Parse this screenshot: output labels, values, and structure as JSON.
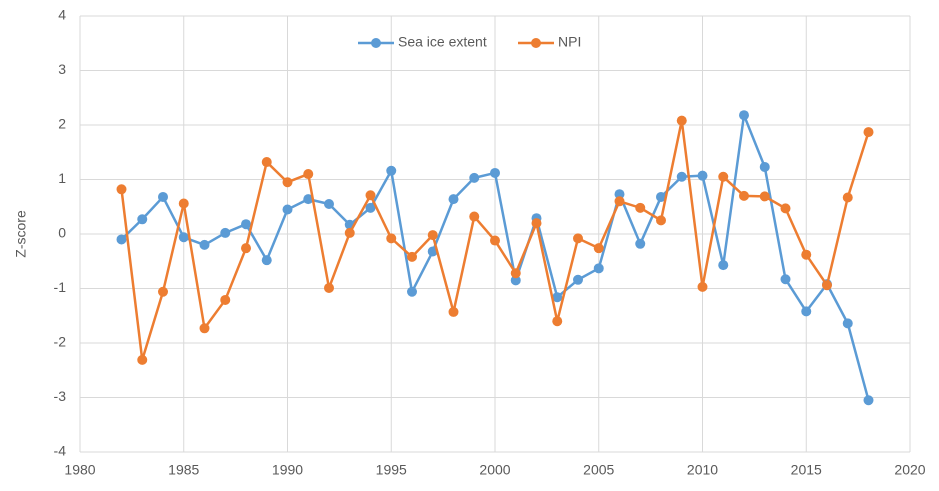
{
  "chart_data": {
    "type": "line",
    "y_label": "Z-score",
    "x": [
      1982,
      1983,
      1984,
      1985,
      1986,
      1987,
      1988,
      1989,
      1990,
      1991,
      1992,
      1993,
      1994,
      1995,
      1996,
      1997,
      1998,
      1999,
      2000,
      2001,
      2002,
      2003,
      2004,
      2005,
      2006,
      2007,
      2008,
      2009,
      2010,
      2011,
      2012,
      2013,
      2014,
      2015,
      2016,
      2017,
      2018
    ],
    "series": [
      {
        "name": "Sea ice extent",
        "color": "#5b9bd5",
        "values": [
          -0.1,
          0.27,
          0.68,
          -0.06,
          -0.2,
          0.02,
          0.18,
          -0.48,
          0.45,
          0.64,
          0.55,
          0.17,
          0.48,
          1.16,
          -1.06,
          -0.32,
          0.64,
          1.03,
          1.12,
          -0.85,
          0.29,
          -1.16,
          -0.84,
          -0.63,
          0.73,
          -0.18,
          0.68,
          1.05,
          1.07,
          -0.57,
          2.18,
          1.23,
          -0.83,
          -1.42,
          -0.92,
          -1.64,
          -3.05
        ]
      },
      {
        "name": "NPI",
        "color": "#ed7d31",
        "values": [
          0.82,
          -2.31,
          -1.06,
          0.56,
          -1.73,
          -1.21,
          -0.26,
          1.32,
          0.95,
          1.1,
          -0.99,
          0.02,
          0.71,
          -0.08,
          -0.42,
          -0.02,
          -1.43,
          0.32,
          -0.12,
          -0.72,
          0.2,
          -1.6,
          -0.08,
          -0.26,
          0.6,
          0.48,
          0.25,
          2.08,
          -0.97,
          1.05,
          0.7,
          0.69,
          0.47,
          -0.38,
          -0.94,
          0.67,
          1.87
        ]
      }
    ],
    "xlim": [
      1980,
      2020
    ],
    "xticks": [
      1980,
      1985,
      1990,
      1995,
      2000,
      2005,
      2010,
      2015,
      2020
    ],
    "ylim": [
      -4,
      4
    ],
    "yticks": [
      -4,
      -3,
      -2,
      -1,
      0,
      1,
      2,
      3,
      4
    ],
    "grid": true,
    "legend": "top"
  }
}
